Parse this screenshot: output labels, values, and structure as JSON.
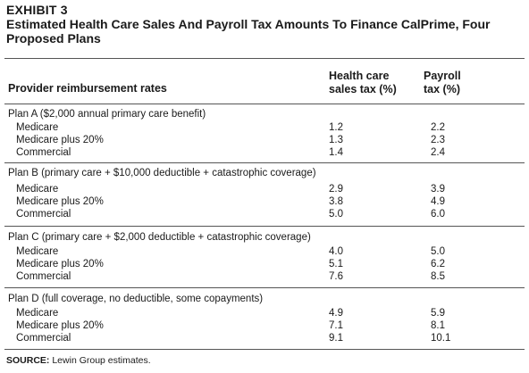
{
  "header": {
    "exhibit": "EXHIBIT 3",
    "title": "Estimated Health Care Sales And Payroll Tax Amounts To Finance CalPrime, Four Proposed Plans"
  },
  "columns": {
    "label": "Provider reimbursement rates",
    "h1_line1": "Health care",
    "h1_line2": "sales tax (%)",
    "h2_line1": "Payroll",
    "h2_line2": "tax (%)"
  },
  "plans": [
    {
      "title": "Plan A ($2,000 annual primary care benefit)",
      "rows": [
        {
          "label": "Medicare",
          "sales": "1.2",
          "payroll": "2.2"
        },
        {
          "label": "Medicare plus 20%",
          "sales": "1.3",
          "payroll": "2.3"
        },
        {
          "label": "Commercial",
          "sales": "1.4",
          "payroll": "2.4"
        }
      ]
    },
    {
      "title": "Plan B (primary care + $10,000 deductible + catastrophic coverage)",
      "rows": [
        {
          "label": "Medicare",
          "sales": "2.9",
          "payroll": "3.9"
        },
        {
          "label": "Medicare plus 20%",
          "sales": "3.8",
          "payroll": "4.9"
        },
        {
          "label": "Commercial",
          "sales": "5.0",
          "payroll": "6.0"
        }
      ]
    },
    {
      "title": "Plan C (primary care + $2,000 deductible + catastrophic coverage)",
      "rows": [
        {
          "label": "Medicare",
          "sales": "4.0",
          "payroll": "5.0"
        },
        {
          "label": "Medicare plus 20%",
          "sales": "5.1",
          "payroll": "6.2"
        },
        {
          "label": "Commercial",
          "sales": "7.6",
          "payroll": "8.5"
        }
      ]
    },
    {
      "title": "Plan D (full coverage, no deductible, some copayments)",
      "rows": [
        {
          "label": "Medicare",
          "sales": "4.9",
          "payroll": "5.9"
        },
        {
          "label": "Medicare plus 20%",
          "sales": "7.1",
          "payroll": "8.1"
        },
        {
          "label": "Commercial",
          "sales": "9.1",
          "payroll": "10.1"
        }
      ]
    }
  ],
  "source": {
    "label": "SOURCE:",
    "text": "Lewin Group estimates."
  }
}
